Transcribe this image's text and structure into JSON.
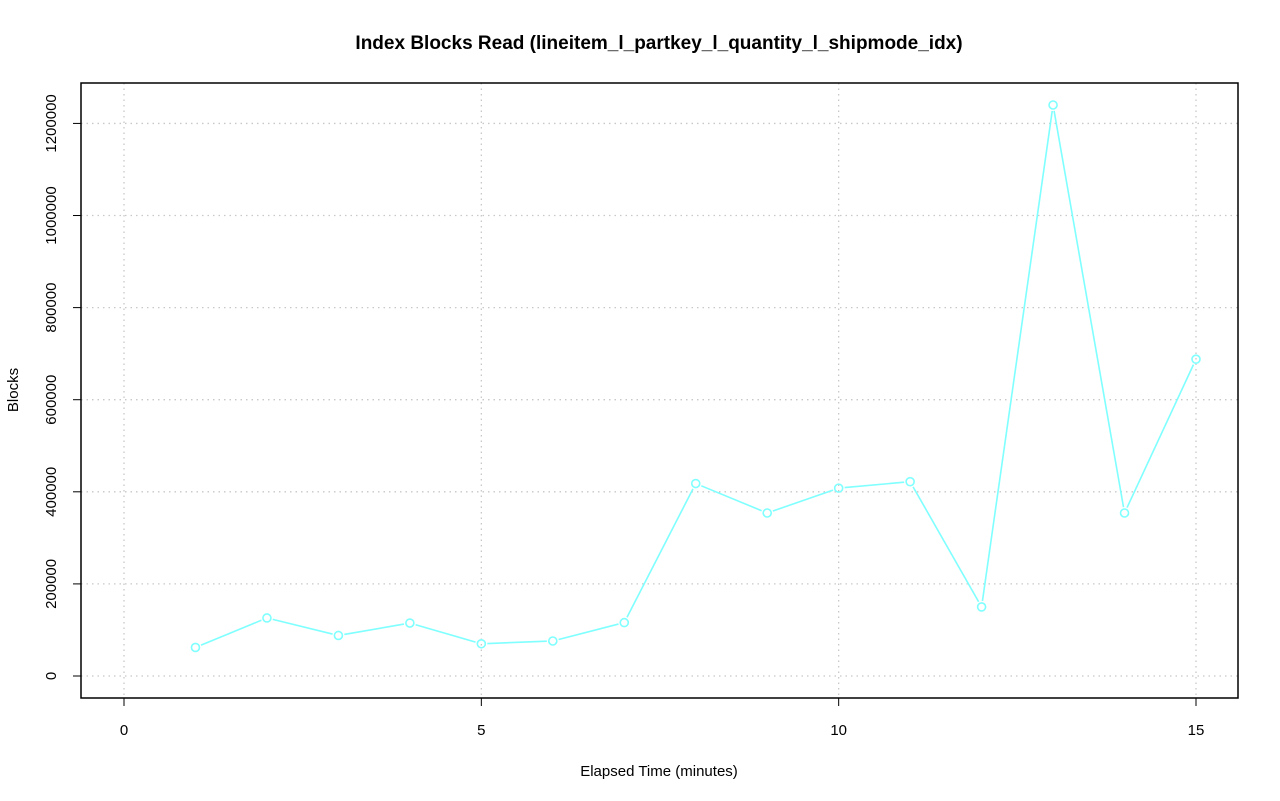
{
  "chart_data": {
    "type": "line",
    "title": "Index Blocks Read (lineitem_l_partkey_l_quantity_l_shipmode_idx)",
    "xlabel": "Elapsed Time (minutes)",
    "ylabel": "Blocks",
    "xlim": [
      0,
      15
    ],
    "ylim": [
      0,
      1240000
    ],
    "xticks": [
      0,
      5,
      10,
      15
    ],
    "yticks": [
      0,
      200000,
      400000,
      600000,
      800000,
      1000000,
      1200000
    ],
    "grid": true,
    "series": [
      {
        "color": "#7fffff",
        "x": [
          1,
          2,
          3,
          4,
          5,
          6,
          7,
          8,
          9,
          10,
          11,
          12,
          13,
          14,
          15
        ],
        "y": [
          62000,
          126000,
          88000,
          115000,
          70000,
          76000,
          116000,
          418000,
          354000,
          408000,
          422000,
          150000,
          1240000,
          354000,
          688000
        ]
      }
    ]
  }
}
